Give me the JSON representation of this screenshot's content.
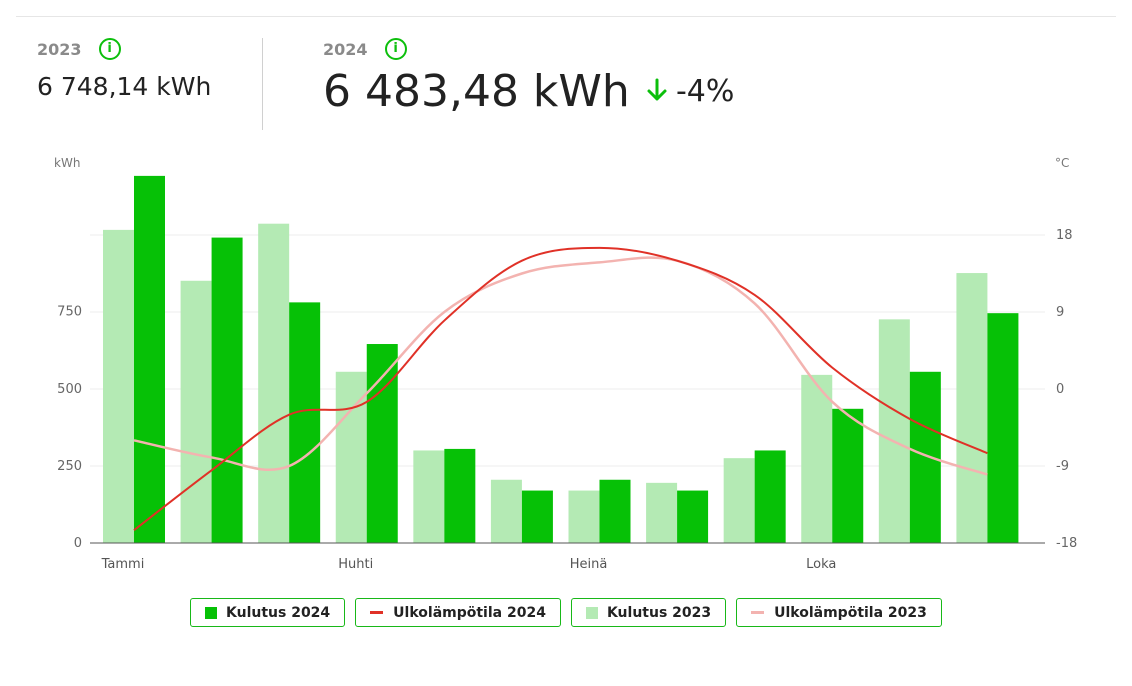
{
  "summary": {
    "prev": {
      "year": "2023",
      "value": "6 748,14 kWh",
      "info_icon": "info-icon"
    },
    "curr": {
      "year": "2024",
      "value": "6 483,48 kWh",
      "change": "-4%",
      "change_icon": "arrow-down-icon"
    }
  },
  "colors": {
    "kulutus_2024": "#06c106",
    "kulutus_2023": "#b4eab4",
    "temp_2024": "#e03127",
    "temp_2023": "#f3b3b0",
    "accent": "#0cbf0c"
  },
  "legend": [
    {
      "label": "Kulutus 2024",
      "kind": "box",
      "color_key": "kulutus_2024"
    },
    {
      "label": "Ulkolämpötila 2024",
      "kind": "line",
      "color_key": "temp_2024"
    },
    {
      "label": "Kulutus 2023",
      "kind": "box",
      "color_key": "kulutus_2023"
    },
    {
      "label": "Ulkolämpötila 2023",
      "kind": "line",
      "color_key": "temp_2023"
    }
  ],
  "chart_data": {
    "type": "bar",
    "left_unit": "kWh",
    "right_unit": "°C",
    "categories": [
      "Tammi",
      "",
      "",
      "Huhti",
      "",
      "",
      "Heinä",
      "",
      "",
      "Loka",
      "",
      ""
    ],
    "ylim": [
      0,
      1200
    ],
    "y_ticks": [
      0,
      250,
      500,
      750
    ],
    "y2lim": [
      -18,
      26
    ],
    "y2_ticks": [
      -18,
      -9,
      0,
      9,
      18
    ],
    "grid": true,
    "legend_position": "bottom",
    "series": [
      {
        "name": "Kulutus 2023",
        "type": "bar",
        "values": [
          1015,
          850,
          1035,
          555,
          300,
          205,
          170,
          195,
          275,
          545,
          725,
          875
        ]
      },
      {
        "name": "Kulutus 2024",
        "type": "bar",
        "values": [
          1190,
          990,
          780,
          645,
          305,
          170,
          205,
          170,
          300,
          435,
          555,
          745
        ]
      },
      {
        "name": "Ulkolämpötila 2024",
        "type": "line",
        "values": [
          -16.5,
          -9.5,
          -3,
          -1.5,
          8,
          15,
          16.5,
          15,
          11,
          2.5,
          -3.5,
          -7.5
        ]
      },
      {
        "name": "Ulkolämpötila 2023",
        "type": "line",
        "values": [
          -6,
          -8,
          -9,
          -0.5,
          9,
          13.5,
          14.8,
          15,
          10,
          -1.5,
          -7,
          -10
        ]
      }
    ]
  }
}
